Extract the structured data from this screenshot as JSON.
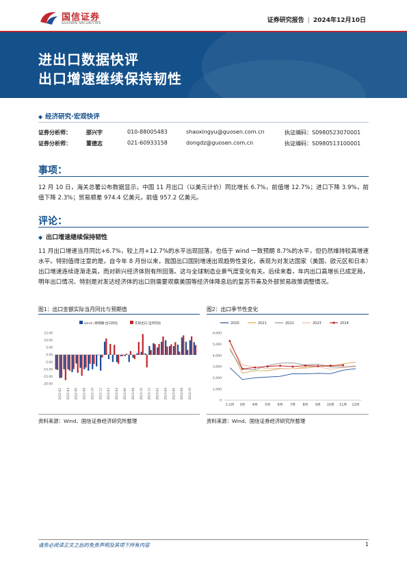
{
  "header": {
    "logo_cn": "国信证券",
    "logo_en": "GUOSEN SECURITIES",
    "report_type": "证券研究报告",
    "date": "2024年12月10日"
  },
  "banner": {
    "title_line1": "进出口数据快评",
    "title_line2": "出口增速继续保持韧性"
  },
  "category": "经济研究·宏观快评",
  "analysts": [
    {
      "role": "证券分析师：",
      "name": "邵兴宇",
      "tel": "010-88005483",
      "email": "shaoxingyu@guosen.com.cn",
      "license": "执证编码：S0980523070001"
    },
    {
      "role": "证券分析师：",
      "name": "董德志",
      "tel": "021-60933158",
      "email": "dongdz@guosen.com.cn",
      "license": "执证编码：S0980513100001"
    }
  ],
  "section1": {
    "title": "事项：",
    "text": "12 月 10 日，海关总署公布数据显示，中国 11 月出口（以美元计价）同比增长 6.7%，前值增 12.7%；进口下降 3.9%，前值下降 2.3%；贸易顺差 974.4 亿美元，前值 957.2 亿美元。"
  },
  "section2": {
    "title": "评论：",
    "subhead": "出口增速继续保持韧性",
    "text": "11 月出口增速当月同比+6.7%，较上月+12.7%的水平出现回落，也低于 wind 一致预期 8.7%的水平，但仍然维持较高增速水平。特别值得注意的是，自今年 8 月份以来，我国出口国别增速出现趋势性变化，表现为对发达国家（美国、欧元区和日本）出口增速连续逐渐走高，而对新兴经济体则有所回落。这与全球制造业景气度变化有关。后续来看，年内出口高增长已成定局，明年出口情况、特别是对发达经济体的出口则需要观察美国等经济体降息后的复苏节奏及外部贸易政策调整情况。"
  },
  "figure1": {
    "title": "图1：出口金额实际当月同比与预期值",
    "source": "资料来源：Wind、国信证券经济研究所整理"
  },
  "figure2": {
    "title": "图2：出口季节性变化",
    "source": "资料来源：Wind、国信证券经济研究所整理"
  },
  "chart_data": [
    {
      "type": "bar",
      "legend": [
        "wind一致预期:出口同比",
        "实际出口:当月同比"
      ],
      "categories": [
        "2022-01",
        "2022-02",
        "2022-03",
        "2022-04",
        "2022-05",
        "2022-06",
        "2022-07",
        "2022-08",
        "2022-09",
        "2022-10",
        "2022-11",
        "2022-12",
        "2023-01",
        "2023-02",
        "2023-03",
        "2023-04",
        "2023-05",
        "2023-06",
        "2023-07",
        "2023-08",
        "2023-09",
        "2023-10",
        "2023-11",
        "2023-12",
        "2024-01",
        "2024-02",
        "2024-03",
        "2024-04",
        "2024-05",
        "2024-06",
        "2024-07",
        "2024-08",
        "2024-09",
        "2024-10",
        "2024-11"
      ],
      "tick_labels": [
        "2022-02",
        "2022-04",
        "2022-06",
        "2022-08",
        "2022-10",
        "2022-12",
        "2023-02",
        "2023-04",
        "2023-06",
        "2023-08",
        "2023-10",
        "2023-12",
        "2024-02",
        "2024-04",
        "2024-06",
        "2024-08",
        "2024-10"
      ],
      "series": [
        {
          "name": "wind一致预期:出口同比",
          "color": "#1f4e96",
          "values": [
            -10,
            -16,
            -10,
            -10,
            -12,
            -6,
            -9,
            -10,
            -11,
            -10,
            -8,
            -11,
            9,
            -3,
            -5,
            -5,
            -1,
            -1,
            -5,
            -2,
            1,
            2,
            1,
            6,
            8,
            5,
            9,
            10,
            6,
            6,
            7,
            12,
            9,
            10,
            8.7
          ]
        },
        {
          "name": "实际出口:当月同比",
          "color": "#c0282d",
          "values": [
            -10.5,
            -15.8,
            -17.5,
            -11,
            -9.9,
            -12.4,
            -14.5,
            -8.8,
            -6.2,
            -6.4,
            -0.3,
            -1.9,
            11.3,
            7.4,
            6.9,
            -6.2,
            -0.9,
            0.7,
            2.6,
            -3.0,
            8.8,
            14.3,
            -8.7,
            3.2,
            7.3,
            7.5,
            12.6,
            5.7,
            7.2,
            8.7,
            2.2,
            13.4,
            3.4,
            12.7,
            6.7
          ]
        }
      ],
      "ylim": [
        -20,
        15
      ],
      "yticks": [
        "15.00",
        "10.00",
        "5.00",
        "0.00",
        "-5.00",
        "-10.00",
        "-15.00",
        "-20.00"
      ]
    },
    {
      "type": "line",
      "categories": [
        "1-2月",
        "3月",
        "4月",
        "5月",
        "6月",
        "7月",
        "8月",
        "9月",
        "10月",
        "11月",
        "12月"
      ],
      "yticks": [
        "6,000",
        "5,000",
        "4,000",
        "3,000",
        "2,000",
        "1,000",
        "0"
      ],
      "ylim": [
        0,
        6000
      ],
      "series": [
        {
          "name": "2020",
          "color": "#1f4e96",
          "values": [
            2900,
            1850,
            2000,
            2070,
            2130,
            2370,
            2350,
            2400,
            2370,
            2680,
            2820
          ]
        },
        {
          "name": "2021",
          "color": "#d4a94a",
          "values": [
            4700,
            2420,
            2640,
            2630,
            2810,
            2820,
            2940,
            3060,
            3000,
            3250,
            3400
          ]
        },
        {
          "name": "2022",
          "color": "#8e8e8e",
          "values": [
            4500,
            2750,
            2730,
            3080,
            3310,
            3330,
            3150,
            3220,
            2980,
            2960,
            3060
          ]
        },
        {
          "name": "2023",
          "color": "#e9b8a0",
          "values": [
            5060,
            3150,
            2950,
            2830,
            2850,
            2820,
            2840,
            2990,
            2760,
            2920,
            3000
          ]
        },
        {
          "name": "2024",
          "color": "#c0282d",
          "values": [
            5280,
            2800,
            2920,
            3020,
            3080,
            3000,
            3090,
            3040,
            3090,
            3120,
            null
          ]
        }
      ]
    }
  ],
  "footer": {
    "disclaimer": "请务必阅读正文之后的免责声明及其项下所有内容",
    "page": "1"
  }
}
